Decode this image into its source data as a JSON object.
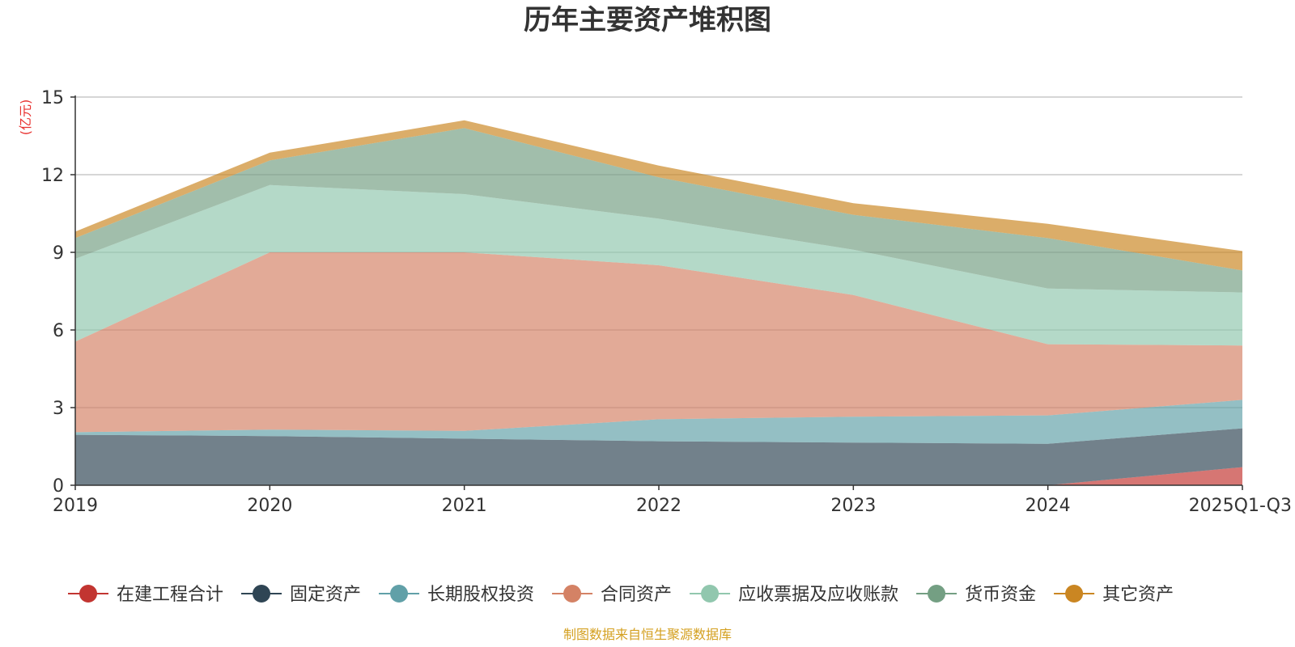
{
  "chart_data": {
    "type": "area",
    "stacked": true,
    "title": "历年主要资产堆积图",
    "unit_label": "(亿元)",
    "categories": [
      "2019",
      "2020",
      "2021",
      "2022",
      "2023",
      "2024",
      "2025Q1-Q3"
    ],
    "yticks": [
      0,
      3,
      6,
      9,
      12,
      15
    ],
    "ylim": [
      0,
      15
    ],
    "grid": true,
    "legend_position": "bottom",
    "series": [
      {
        "name": "在建工程合计",
        "color": "#c23531",
        "values": [
          0,
          0,
          0,
          0,
          0,
          0,
          0.7
        ]
      },
      {
        "name": "固定资产",
        "color": "#2f4554",
        "values": [
          1.95,
          1.9,
          1.8,
          1.7,
          1.65,
          1.6,
          1.5
        ]
      },
      {
        "name": "长期股权投资",
        "color": "#61a0a8",
        "values": [
          0.1,
          0.25,
          0.3,
          0.85,
          1.0,
          1.1,
          1.1
        ]
      },
      {
        "name": "合同资产",
        "color": "#d48265",
        "values": [
          3.5,
          6.85,
          6.9,
          5.95,
          4.7,
          2.75,
          2.1
        ]
      },
      {
        "name": "应收票据及应收账款",
        "color": "#91c7ae",
        "values": [
          3.2,
          2.6,
          2.25,
          1.8,
          1.75,
          2.15,
          2.05
        ]
      },
      {
        "name": "货币资金",
        "color": "#749f83",
        "values": [
          0.8,
          0.95,
          2.55,
          1.6,
          1.35,
          1.95,
          0.85
        ]
      },
      {
        "name": "其它资产",
        "color": "#ca8622",
        "values": [
          0.25,
          0.3,
          0.3,
          0.45,
          0.45,
          0.55,
          0.75
        ]
      }
    ],
    "source": "制图数据来自恒生聚源数据库",
    "colors": {
      "axis": "#333333",
      "grid": "#c8c8c8",
      "unit": "#e8312f",
      "source": "#d4a020"
    }
  }
}
